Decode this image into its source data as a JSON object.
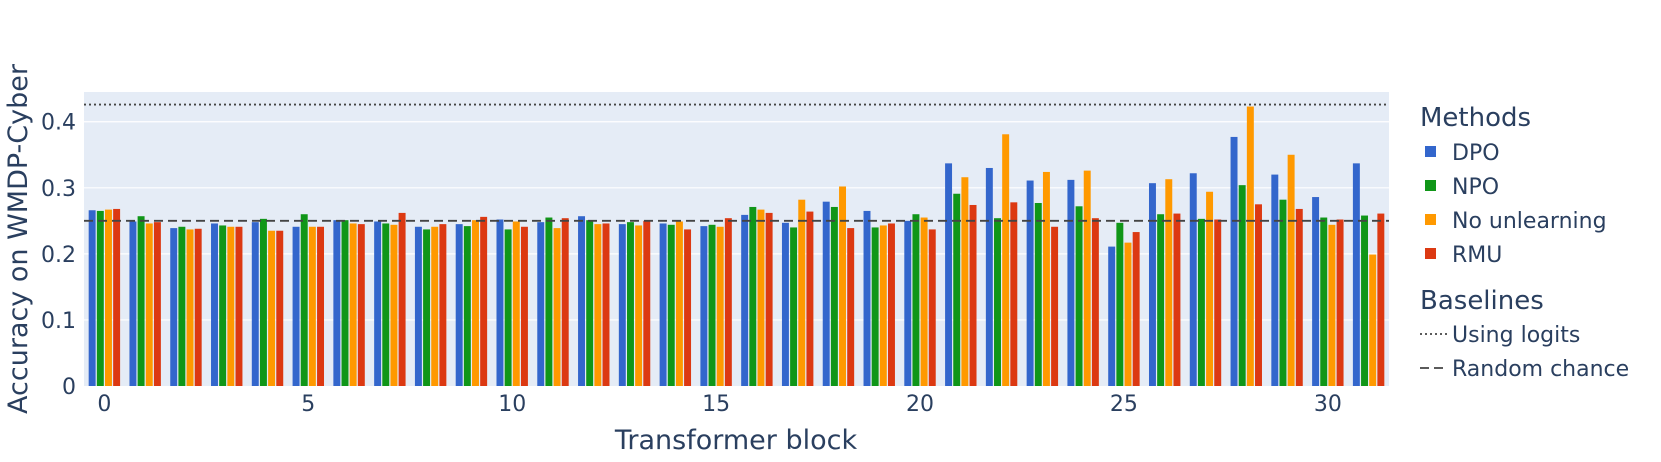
{
  "chart_data": {
    "type": "bar",
    "xlabel": "Transformer block",
    "ylabel": "Accuracy on WMDP-Cyber",
    "ylim": [
      0,
      0.445
    ],
    "xlim": [
      -0.5,
      31.5
    ],
    "grid": true,
    "legend_position": "right",
    "x_ticks": [
      0,
      5,
      10,
      15,
      20,
      25,
      30
    ],
    "y_ticks": [
      0,
      0.1,
      0.2,
      0.3,
      0.4
    ],
    "y_tick_labels": [
      "0",
      "0.1",
      "0.2",
      "0.3",
      "0.4"
    ],
    "categories": [
      0,
      1,
      2,
      3,
      4,
      5,
      6,
      7,
      8,
      9,
      10,
      11,
      12,
      13,
      14,
      15,
      16,
      17,
      18,
      19,
      20,
      21,
      22,
      23,
      24,
      25,
      26,
      27,
      28,
      29,
      30,
      31
    ],
    "legend_groups": [
      {
        "title": "Methods"
      },
      {
        "title": "Baselines"
      }
    ],
    "series": [
      {
        "name": "DPO",
        "color": "#3366CC",
        "values": [
          0.266,
          0.249,
          0.239,
          0.246,
          0.248,
          0.241,
          0.251,
          0.249,
          0.241,
          0.245,
          0.252,
          0.248,
          0.257,
          0.245,
          0.246,
          0.242,
          0.259,
          0.247,
          0.279,
          0.265,
          0.25,
          0.337,
          0.33,
          0.311,
          0.312,
          0.211,
          0.307,
          0.322,
          0.377,
          0.32,
          0.286,
          0.337
        ]
      },
      {
        "name": "NPO",
        "color": "#109618",
        "values": [
          0.265,
          0.257,
          0.241,
          0.243,
          0.253,
          0.26,
          0.251,
          0.246,
          0.237,
          0.242,
          0.237,
          0.255,
          0.251,
          0.248,
          0.244,
          0.244,
          0.271,
          0.24,
          0.271,
          0.24,
          0.26,
          0.291,
          0.254,
          0.277,
          0.272,
          0.247,
          0.26,
          0.253,
          0.304,
          0.282,
          0.255,
          0.258
        ]
      },
      {
        "name": "No unlearning",
        "color": "#FF9900",
        "values": [
          0.267,
          0.246,
          0.237,
          0.241,
          0.235,
          0.241,
          0.246,
          0.244,
          0.241,
          0.251,
          0.249,
          0.239,
          0.245,
          0.243,
          0.249,
          0.241,
          0.267,
          0.282,
          0.302,
          0.243,
          0.255,
          0.316,
          0.381,
          0.324,
          0.326,
          0.217,
          0.313,
          0.294,
          0.423,
          0.35,
          0.244,
          0.199
        ]
      },
      {
        "name": "RMU",
        "color": "#DC3912",
        "values": [
          0.268,
          0.248,
          0.238,
          0.241,
          0.235,
          0.241,
          0.245,
          0.262,
          0.245,
          0.256,
          0.241,
          0.254,
          0.246,
          0.25,
          0.237,
          0.254,
          0.262,
          0.264,
          0.239,
          0.246,
          0.237,
          0.274,
          0.278,
          0.241,
          0.254,
          0.233,
          0.261,
          0.252,
          0.275,
          0.268,
          0.252,
          0.261
        ]
      }
    ],
    "baselines": [
      {
        "name": "Using logits",
        "value": 0.426,
        "dash": "dot"
      },
      {
        "name": "Random chance",
        "value": 0.25,
        "dash": "dash"
      }
    ]
  },
  "colors": {
    "plot_background": "#E5ECF6",
    "grid": "#ffffff",
    "text": "#2a3f5f",
    "baseline_line": "#444444"
  }
}
